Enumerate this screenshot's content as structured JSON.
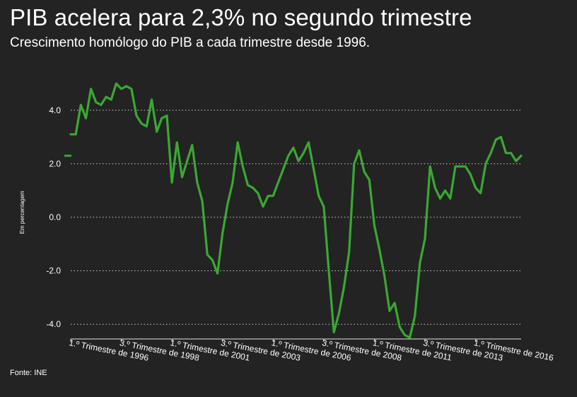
{
  "header": {
    "title": "PIB acelera para 2,3% no segundo trimestre",
    "subtitle": "Crescimento homólogo do PIB a cada trimestre desde 1996."
  },
  "footer": {
    "source": "Fonte: INE"
  },
  "colors": {
    "line": "#3aa832",
    "background": "#232323",
    "grid": "#cfcfcf",
    "text": "#ffffff"
  },
  "chart_data": {
    "type": "line",
    "title": "PIB acelera para 2,3% no segundo trimestre",
    "subtitle": "Crescimento homólogo do PIB a cada trimestre desde 1996.",
    "xlabel": "",
    "ylabel": "Em percentagem",
    "ylim": [
      -4.6,
      5.2
    ],
    "yticks": [
      4.0,
      2.0,
      0.0,
      -2.0,
      -4.0
    ],
    "ytick_labels": [
      "4.0",
      "2.0",
      "0.0",
      "-2.0",
      "-4.0"
    ],
    "grid": "horizontal-dotted",
    "x_tick_labels": [
      "1.º Trimestre de 1996",
      "3.º Trimestre de 1998",
      "1.º Trimestre de 2001",
      "3.º Trimestre de 2003",
      "1.º Trimestre de 2006",
      "3.º Trimestre de 2008",
      "1.º Trimestre de 2011",
      "3.º Trimestre de 2013",
      "1.º Trimestre de 2016"
    ],
    "latest_marker": 2.3,
    "series": [
      {
        "values": [
          3.1,
          3.1,
          4.2,
          3.7,
          4.8,
          4.3,
          4.2,
          4.5,
          4.4,
          5.0,
          4.8,
          4.9,
          4.8,
          3.8,
          3.5,
          3.4,
          4.4,
          3.2,
          3.7,
          3.8,
          1.3,
          2.8,
          1.5,
          2.1,
          2.7,
          1.3,
          0.6,
          -1.4,
          -1.6,
          -2.1,
          -0.6,
          0.5,
          1.3,
          2.8,
          1.9,
          1.2,
          1.1,
          0.9,
          0.4,
          0.8,
          0.8,
          1.3,
          1.8,
          2.3,
          2.6,
          2.1,
          2.4,
          2.8,
          1.8,
          0.8,
          0.4,
          -2.0,
          -4.3,
          -3.6,
          -2.6,
          -1.3,
          2.0,
          2.5,
          1.7,
          1.4,
          -0.3,
          -1.2,
          -2.2,
          -3.5,
          -3.2,
          -4.1,
          -4.4,
          -4.5,
          -3.7,
          -1.7,
          -0.8,
          1.9,
          1.1,
          0.7,
          1.0,
          0.7,
          1.9,
          1.9,
          1.9,
          1.6,
          1.1,
          0.9,
          2.0,
          2.4,
          2.9,
          3.0,
          2.4,
          2.4,
          2.1,
          2.3
        ]
      }
    ]
  }
}
